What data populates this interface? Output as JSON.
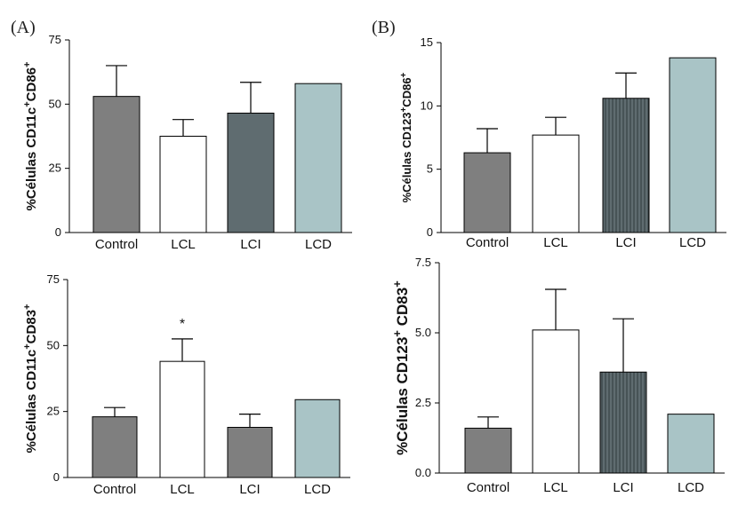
{
  "panel_labels": [
    "(A)",
    "(B)"
  ],
  "chart_data": [
    {
      "type": "bar",
      "ylabel_parts": [
        {
          "t": "%Células CD11c",
          "s": ""
        },
        {
          "t": "+",
          "s": "sup"
        },
        {
          "t": "CD86",
          "s": ""
        },
        {
          "t": "+",
          "s": "sup"
        }
      ],
      "categories": [
        "Control",
        "LCL",
        "LCI",
        "LCD"
      ],
      "values": [
        53,
        37.5,
        46.5,
        58
      ],
      "errors": [
        12,
        6.5,
        12,
        0
      ],
      "colors": [
        "#7f7f7f",
        "#ffffff",
        "#5f6c70",
        "#a9c4c6"
      ],
      "hatched": [
        false,
        false,
        false,
        false
      ],
      "ylim": [
        0,
        75
      ],
      "yticks": [
        "0",
        "25",
        "50",
        "75"
      ],
      "significance": [
        "",
        "",
        "",
        ""
      ]
    },
    {
      "type": "bar",
      "ylabel_parts": [
        {
          "t": "%Células CD123",
          "s": ""
        },
        {
          "t": "+",
          "s": "sup"
        },
        {
          "t": "CD86",
          "s": ""
        },
        {
          "t": "+",
          "s": "sup"
        }
      ],
      "categories": [
        "Control",
        "LCL",
        "LCI",
        "LCD"
      ],
      "values": [
        6.3,
        7.7,
        10.6,
        13.8
      ],
      "errors": [
        1.9,
        1.4,
        2.0,
        0
      ],
      "colors": [
        "#7f7f7f",
        "#ffffff",
        "#5f6c70",
        "#a9c4c6"
      ],
      "hatched": [
        false,
        false,
        true,
        false
      ],
      "ylim": [
        0,
        15
      ],
      "yticks": [
        "0",
        "5",
        "10",
        "15"
      ],
      "significance": [
        "",
        "",
        "",
        ""
      ]
    },
    {
      "type": "bar",
      "ylabel_parts": [
        {
          "t": "%Células CD11c",
          "s": ""
        },
        {
          "t": "+",
          "s": "sup"
        },
        {
          "t": "CD83",
          "s": ""
        },
        {
          "t": "+",
          "s": "sup"
        }
      ],
      "categories": [
        "Control",
        "LCL",
        "LCI",
        "LCD"
      ],
      "values": [
        23,
        44,
        19,
        29.5
      ],
      "errors": [
        3.5,
        8.5,
        5,
        0
      ],
      "colors": [
        "#7f7f7f",
        "#ffffff",
        "#7f7f7f",
        "#a9c4c6"
      ],
      "hatched": [
        false,
        false,
        false,
        false
      ],
      "ylim": [
        0,
        75
      ],
      "yticks": [
        "0",
        "25",
        "50",
        "75"
      ],
      "significance": [
        "",
        "*",
        "",
        ""
      ]
    },
    {
      "type": "bar",
      "ylabel_parts": [
        {
          "t": "%Células CD123",
          "s": ""
        },
        {
          "t": "+",
          "s": "sup"
        },
        {
          "t": " CD83",
          "s": ""
        },
        {
          "t": "+",
          "s": "sup"
        }
      ],
      "categories": [
        "Control",
        "LCL",
        "LCI",
        "LCD"
      ],
      "values": [
        1.6,
        5.1,
        3.6,
        2.1
      ],
      "errors": [
        0.4,
        1.45,
        1.9,
        0
      ],
      "colors": [
        "#7f7f7f",
        "#ffffff",
        "#5f6c70",
        "#a9c4c6"
      ],
      "hatched": [
        false,
        false,
        true,
        false
      ],
      "ylim": [
        0,
        7.5
      ],
      "yticks": [
        "0.0",
        "2.5",
        "5.0",
        "7.5"
      ],
      "significance": [
        "",
        "",
        "",
        ""
      ]
    }
  ]
}
